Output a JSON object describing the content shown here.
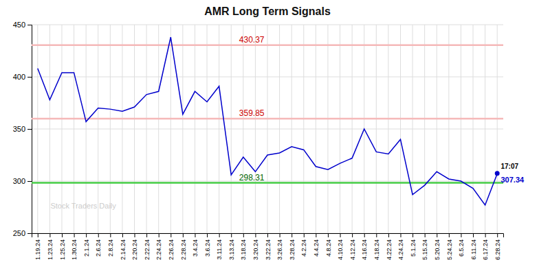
{
  "chart_data": {
    "type": "line",
    "title": "AMR Long Term Signals",
    "categories": [
      "1.19.24",
      "1.23.24",
      "1.25.24",
      "1.30.24",
      "2.1.24",
      "2.6.24",
      "2.8.24",
      "2.14.24",
      "2.20.24",
      "2.22.24",
      "2.24.24",
      "2.26.24",
      "2.28.24",
      "3.4.24",
      "3.6.24",
      "3.11.24",
      "3.13.24",
      "3.18.24",
      "3.20.24",
      "3.22.24",
      "3.26.24",
      "3.28.24",
      "4.2.24",
      "4.4.24",
      "4.8.24",
      "4.10.24",
      "4.12.24",
      "4.16.24",
      "4.18.24",
      "4.22.24",
      "4.24.24",
      "5.1.24",
      "5.15.24",
      "5.20.24",
      "5.24.24",
      "6.5.24",
      "6.11.24",
      "6.17.24",
      "6.28.24"
    ],
    "values": [
      408,
      378,
      404,
      404,
      357,
      370,
      369,
      367,
      371,
      383,
      386,
      438,
      364,
      386,
      376,
      391,
      306,
      323,
      309,
      325,
      327,
      333,
      330,
      314,
      311,
      317,
      322,
      350,
      328,
      326,
      340,
      287,
      296,
      309,
      302,
      300,
      293,
      277,
      307
    ],
    "color": "#0000cc",
    "ylim": [
      250,
      450
    ],
    "yticks": [
      250,
      300,
      350,
      400,
      450
    ],
    "grid": true,
    "hlines": [
      {
        "value": 430.37,
        "color": "#f5b8b8",
        "label": "430.37",
        "label_color": "#cc0000"
      },
      {
        "value": 359.85,
        "color": "#f5b8b8",
        "label": "359.85",
        "label_color": "#cc0000"
      },
      {
        "value": 298.31,
        "color": "#44cc44",
        "label": "298.31",
        "label_color": "#006600"
      }
    ],
    "last_point": {
      "value": 307.34,
      "label": "307.34",
      "time": "17:07",
      "color": "#0000cc"
    },
    "watermark": "Stock Traders Daily"
  }
}
